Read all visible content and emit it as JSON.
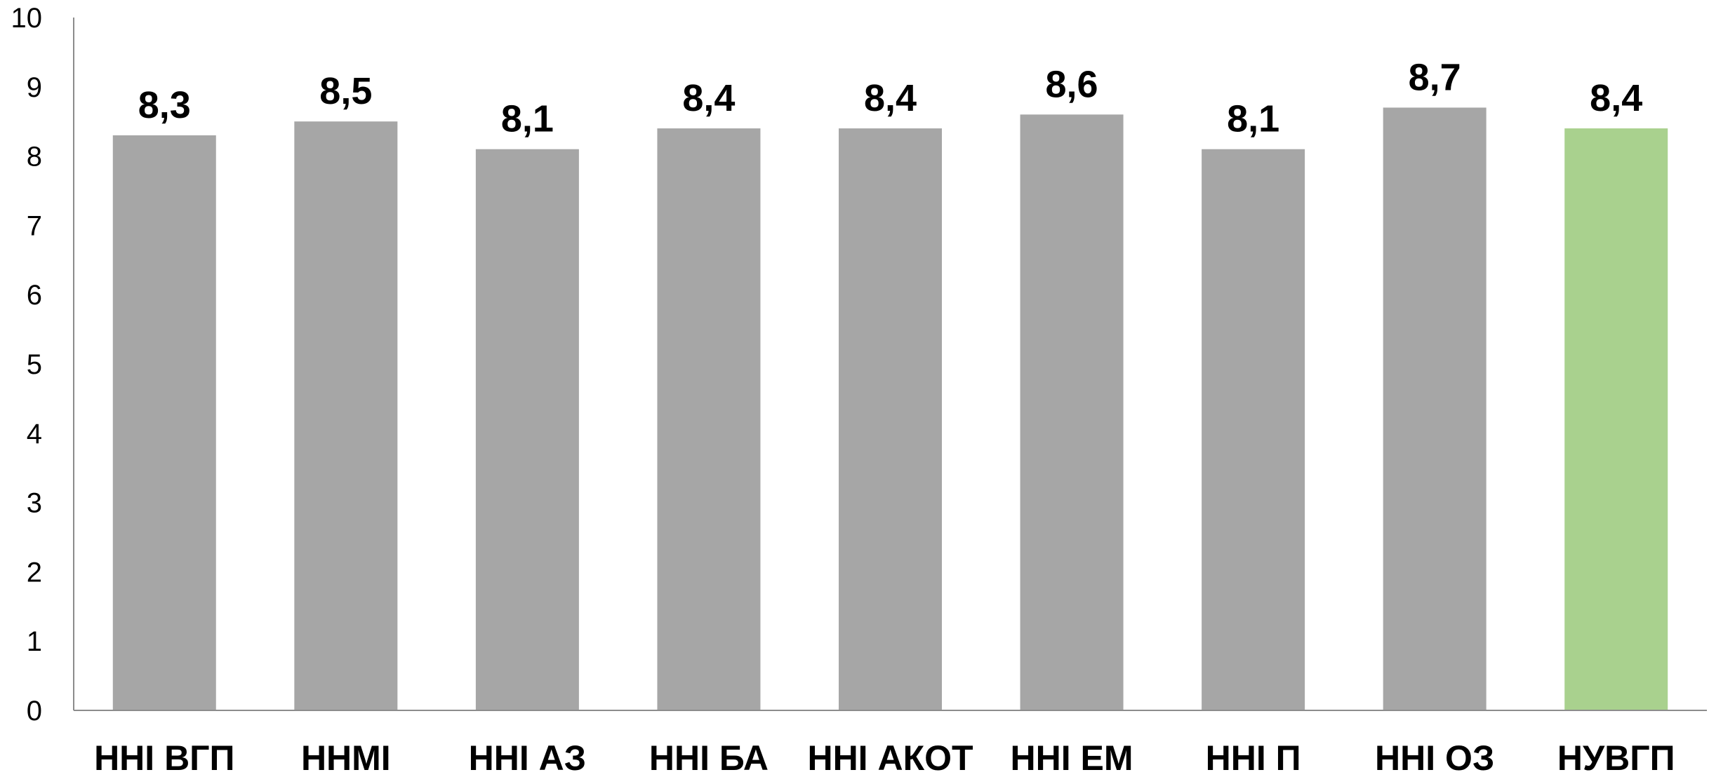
{
  "chart_data": {
    "type": "bar",
    "categories": [
      "ННІ ВГП",
      "ННМІ",
      "ННІ АЗ",
      "ННІ БА",
      "ННІ АКОТ",
      "ННІ ЕМ",
      "ННІ П",
      "ННІ ОЗ",
      "НУВГП"
    ],
    "values": [
      8.3,
      8.5,
      8.1,
      8.4,
      8.4,
      8.6,
      8.1,
      8.7,
      8.4
    ],
    "data_labels": [
      "8,3",
      "8,5",
      "8,1",
      "8,4",
      "8,4",
      "8,6",
      "8,1",
      "8,7",
      "8,4"
    ],
    "title": "",
    "xlabel": "",
    "ylabel": "",
    "ylim": [
      0,
      10
    ],
    "yticks": [
      "0",
      "1",
      "2",
      "3",
      "4",
      "5",
      "6",
      "7",
      "8",
      "9",
      "10"
    ],
    "grid": false,
    "legend": "none",
    "colors": {
      "bar_default": "#a6a6a6",
      "bar_highlight": "#a9d18e",
      "axis": "#8c8c8c"
    },
    "highlight_category": "НУВГП"
  }
}
